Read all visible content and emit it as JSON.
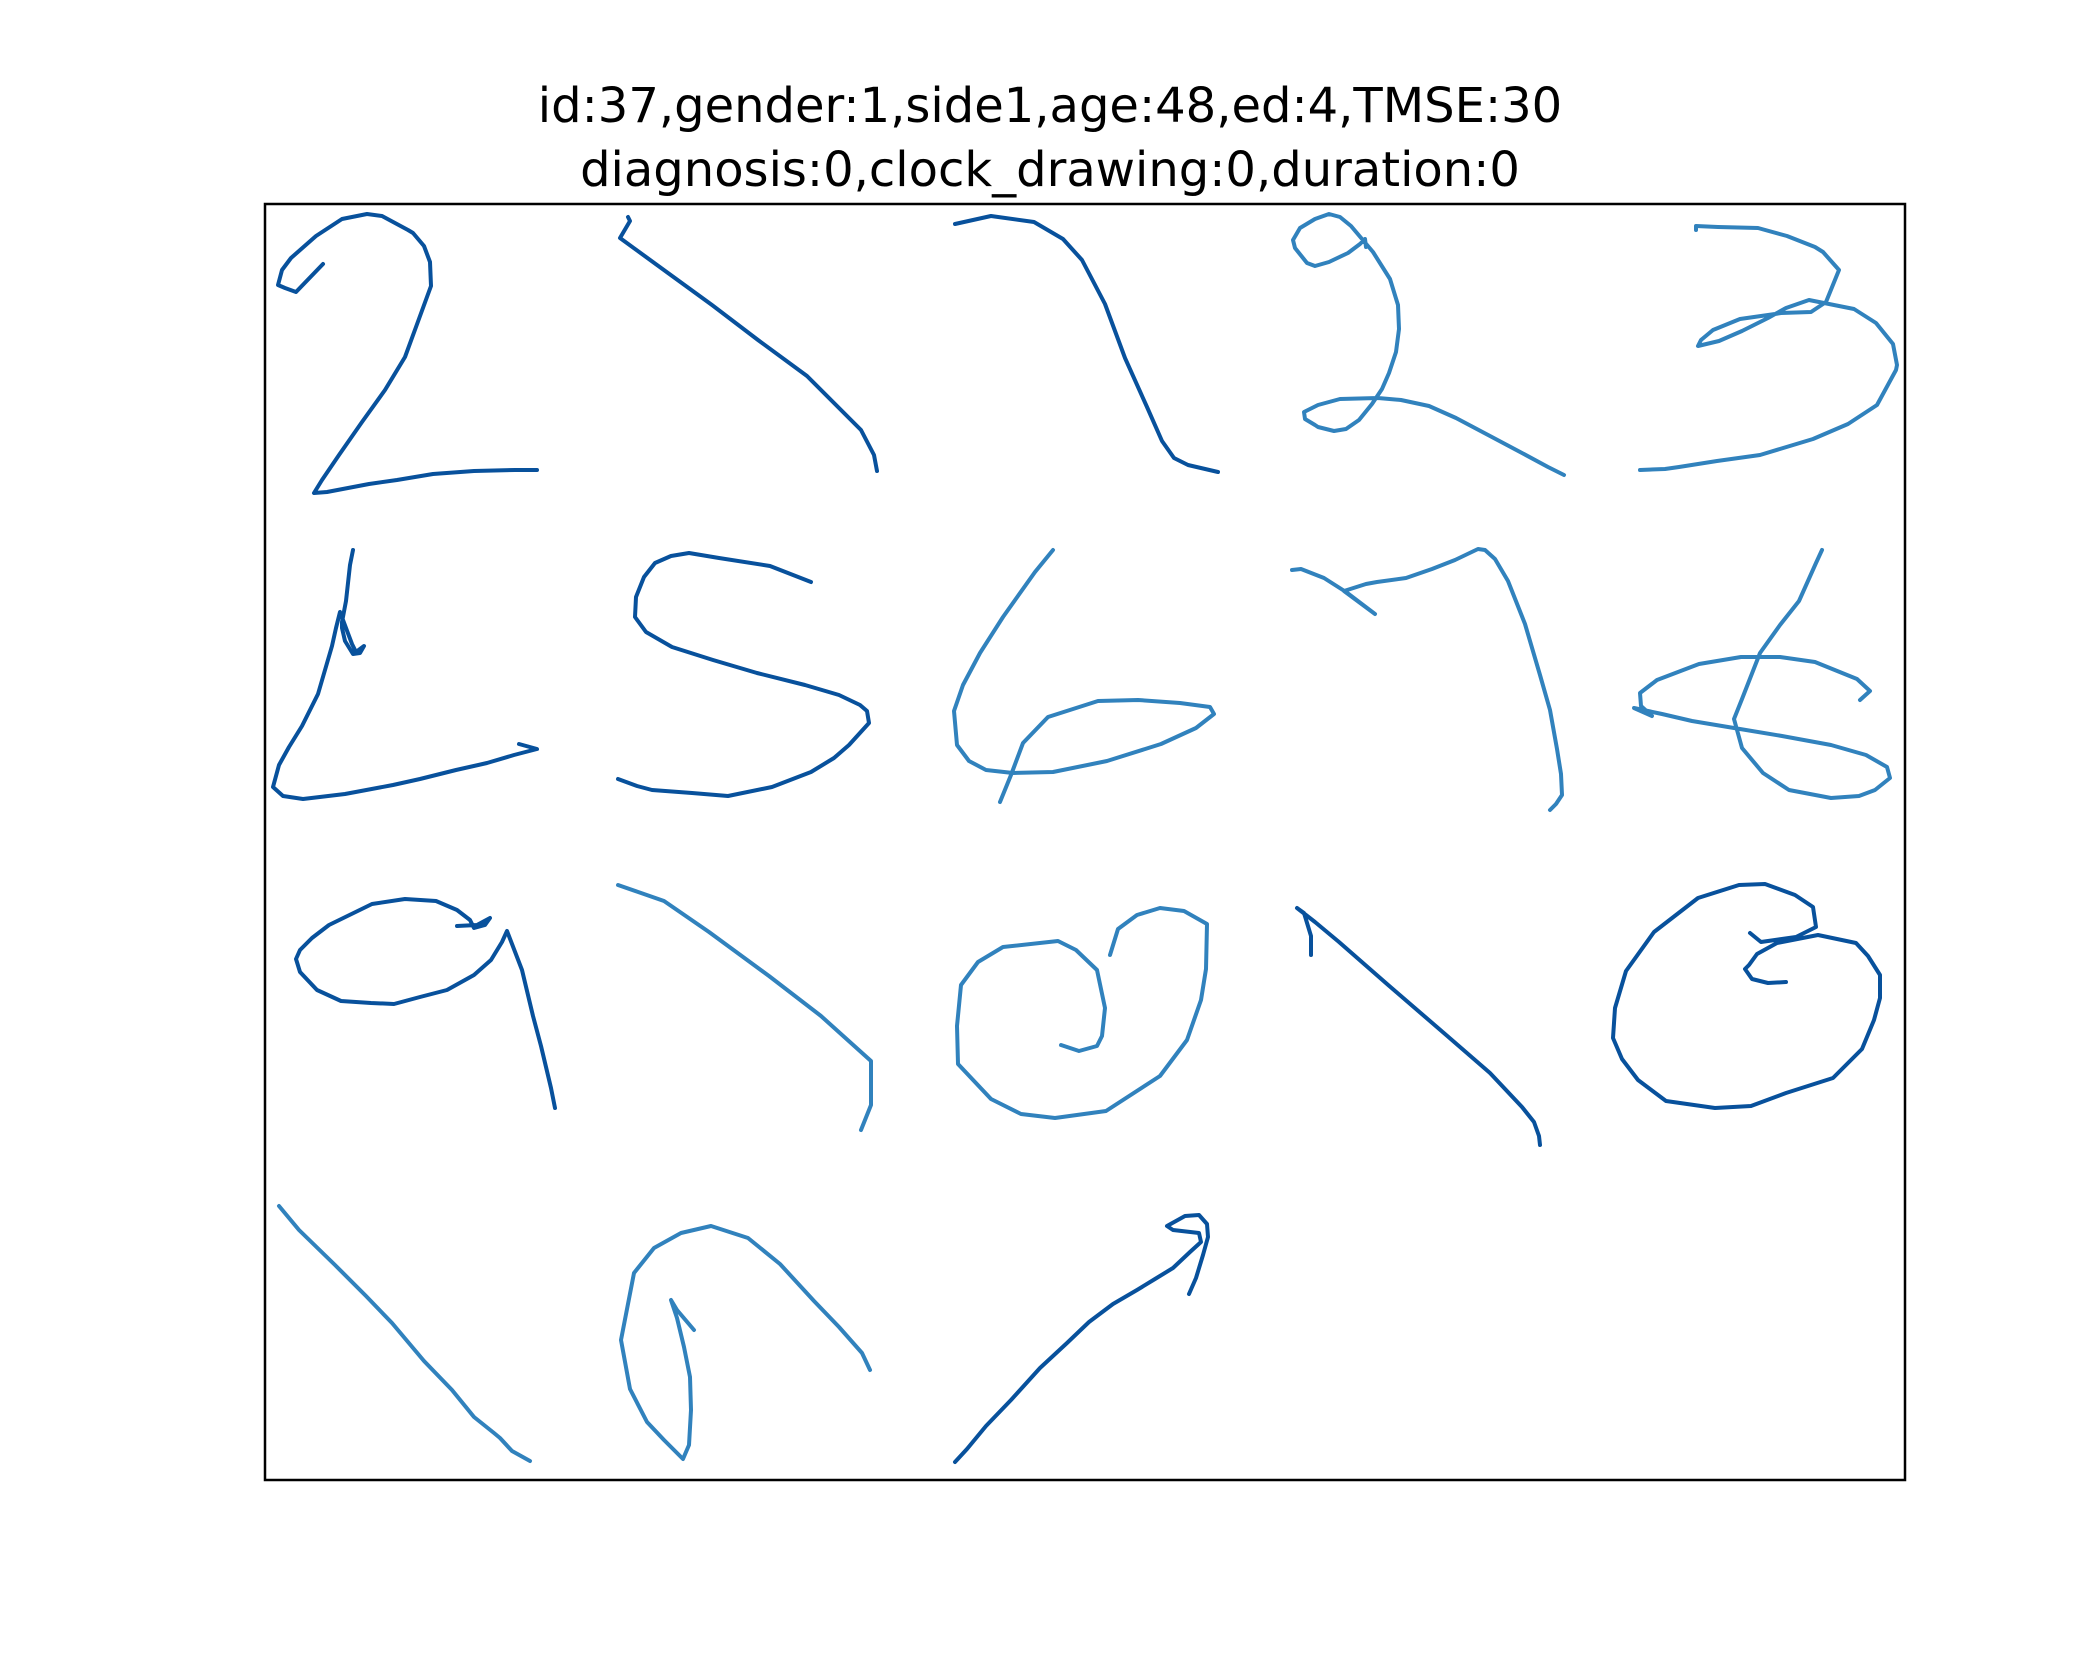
{
  "figure": {
    "title_line1": "id:37,gender:1,side1,age:48,ed:4,TMSE:30",
    "title_line2": "diagnosis:0,clock_drawing:0,duration:0"
  },
  "colors": {
    "background": "#ffffff",
    "frame": "#000000",
    "stroke_dark": "#08519c",
    "stroke_mid": "#3182bd",
    "stroke_light": "#9ecae1"
  },
  "strokes_description": [
    "digit-2",
    "digit-1",
    "digit-7",
    "digit-2-loop",
    "digit-3",
    "digit-4",
    "digit-5",
    "digit-6",
    "digit-7-hooked",
    "digit-6-crossed",
    "digit-9",
    "digit-1-slanted",
    "digit-0-spiral",
    "digit-1-long",
    "digit-0-round",
    "diagonal-stroke",
    "digit-n-loop",
    "hook-stroke"
  ]
}
